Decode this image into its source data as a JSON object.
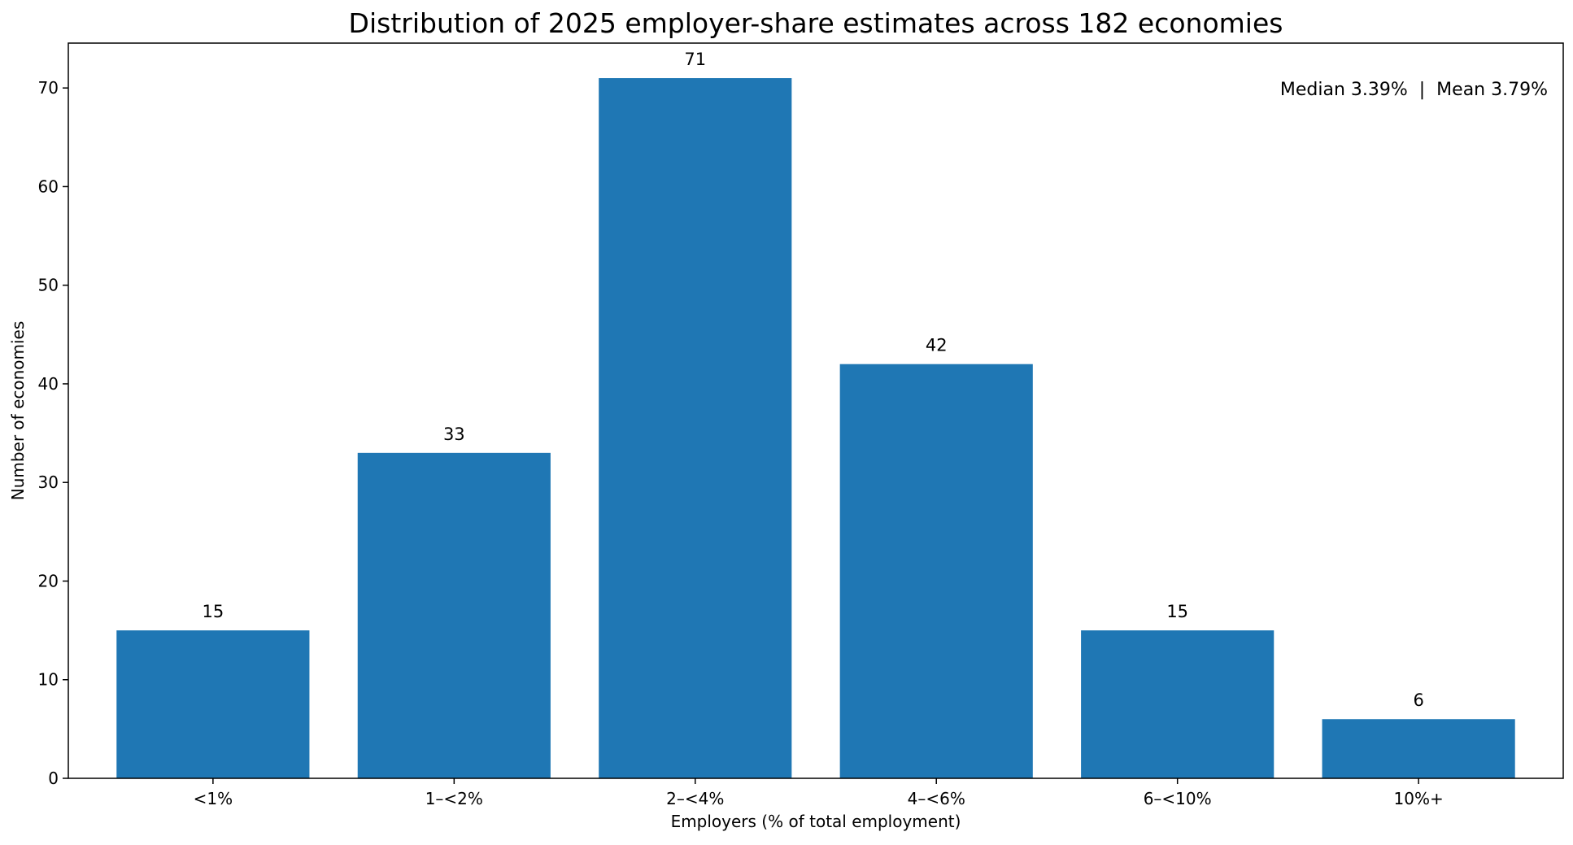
{
  "chart_data": {
    "type": "bar",
    "title": "Distribution of 2025 employer-share estimates across 182 economies",
    "xlabel": "Employers (% of total employment)",
    "ylabel": "Number of economies",
    "categories": [
      "<1%",
      "1–<2%",
      "2–<4%",
      "4–<6%",
      "6–<10%",
      "10%+"
    ],
    "values": [
      15,
      33,
      71,
      42,
      15,
      6
    ],
    "data_labels": [
      "15",
      "33",
      "71",
      "42",
      "15",
      "6"
    ],
    "ylim": [
      0,
      74.55
    ],
    "yticks": [
      0,
      10,
      20,
      30,
      40,
      50,
      60,
      70
    ],
    "annotation": "Median 3.39%  |  Mean 3.79%",
    "grid": false,
    "colors": {
      "bar": "#1f77b4",
      "axis": "#000000"
    }
  }
}
